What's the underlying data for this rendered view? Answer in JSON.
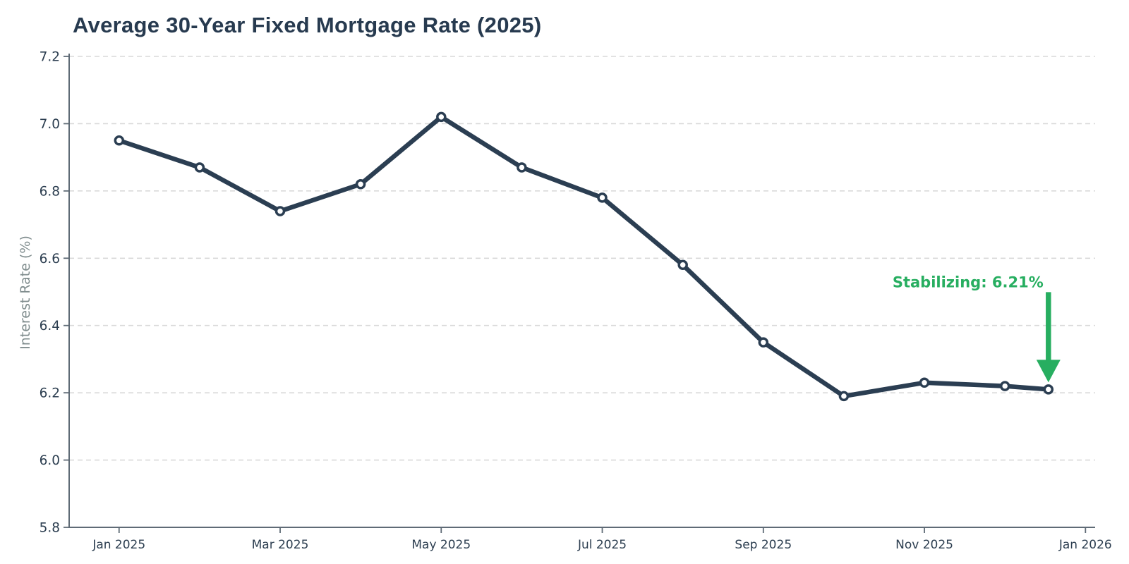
{
  "chart_data": {
    "type": "line",
    "title": "Average 30-Year Fixed Mortgage Rate (2025)",
    "ylabel": "Interest Rate (%)",
    "xlabel": "",
    "x_axis": {
      "unit": "months since Jan 2025",
      "tick_positions": [
        0,
        2,
        4,
        6,
        8,
        10,
        12
      ],
      "tick_labels": [
        "Jan 2025",
        "Mar 2025",
        "May 2025",
        "Jul 2025",
        "Sep 2025",
        "Nov 2025",
        "Jan 2026"
      ],
      "xlim": [
        -0.62,
        12.12
      ]
    },
    "y_axis": {
      "tick_values": [
        5.8,
        6.0,
        6.2,
        6.4,
        6.6,
        6.8,
        7.0,
        7.2
      ],
      "tick_labels": [
        "5.8",
        "6.0",
        "6.2",
        "6.4",
        "6.6",
        "6.8",
        "7.0",
        "7.2"
      ],
      "ylim": [
        5.8,
        7.2
      ]
    },
    "grid": {
      "horizontal_dashed": true,
      "vertical": false
    },
    "legend_position": "none",
    "series": [
      {
        "name": "30-year fixed mortgage rate (%)",
        "color": "#2b3e52",
        "marker_fill": "#ffffff",
        "x": [
          0,
          1,
          2,
          3,
          4,
          5,
          6,
          7,
          8,
          9,
          10,
          11,
          11.54
        ],
        "values": [
          6.95,
          6.87,
          6.74,
          6.82,
          7.02,
          6.87,
          6.78,
          6.58,
          6.35,
          6.19,
          6.23,
          6.22,
          6.21
        ]
      }
    ],
    "annotation": {
      "text": "Stabilizing: 6.21%",
      "color": "#27ae60",
      "target_x": 11.54,
      "target_value": 6.21,
      "arrow": "down"
    },
    "style": {
      "title_color": "#273a4f",
      "tick_label_color": "#2c3e50",
      "axis_label_color": "#7f8c8d",
      "spine_color": "#5f6b76",
      "grid_color": "#d9d9d9",
      "background": "#ffffff"
    }
  }
}
